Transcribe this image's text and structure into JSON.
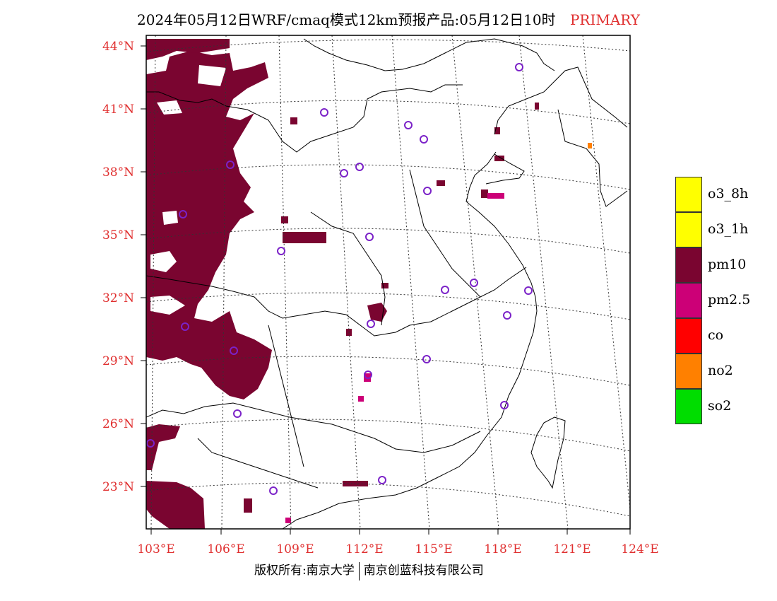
{
  "header": {
    "title": "2024年05月12日WRF/cmaq模式12km预报产品:05月12日10时",
    "tag": "PRIMARY"
  },
  "map": {
    "lat_labels": [
      "44°N",
      "41°N",
      "38°N",
      "35°N",
      "32°N",
      "29°N",
      "26°N",
      "23°N"
    ],
    "lon_labels": [
      "103°E",
      "106°E",
      "109°E",
      "112°E",
      "115°E",
      "118°E",
      "121°E",
      "124°E"
    ],
    "label_color": "#e03030",
    "extent": {
      "lon": [
        103,
        124
      ],
      "lat": [
        21,
        44.5
      ]
    },
    "station_marker_color": "#7b22c8",
    "station_marker": "circle-outline",
    "pollutant_fill_color": "#7a0530",
    "pm25_fill_color": "#cc0077",
    "no2_fill_color": "#ff8000"
  },
  "legend": {
    "items": [
      {
        "label": "o3_8h",
        "color": "#ffff00"
      },
      {
        "label": "o3_1h",
        "color": "#ffff00"
      },
      {
        "label": "pm10",
        "color": "#7a0530"
      },
      {
        "label": "pm2.5",
        "color": "#cc0077"
      },
      {
        "label": "co",
        "color": "#ff0000"
      },
      {
        "label": "no2",
        "color": "#ff8000"
      },
      {
        "label": "so2",
        "color": "#00dd00"
      }
    ]
  },
  "footer": {
    "left": "版权所有:南京大学",
    "right": "南京创蓝科技有限公司"
  }
}
